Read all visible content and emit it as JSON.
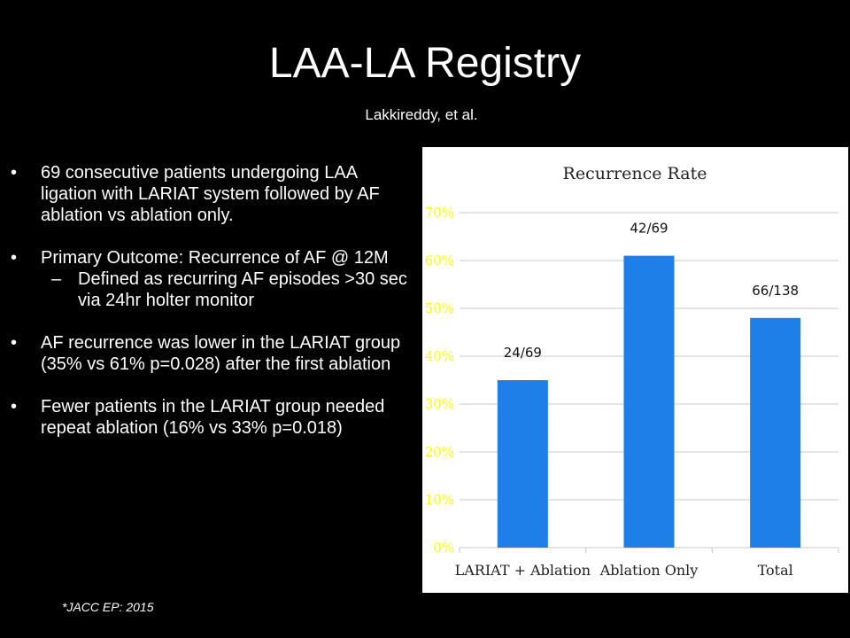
{
  "slide": {
    "title": "LAA-LA Registry",
    "subtitle": "Lakkireddy, et al.",
    "footnote": "*JACC EP:  2015",
    "bullet_mark": "•",
    "sub_bullet_mark": "–",
    "bullets": [
      {
        "text": "69 consecutive patients undergoing LAA ligation with LARIAT system followed by AF ablation vs ablation only."
      },
      {
        "text": "Primary Outcome: Recurrence of AF @ 12M",
        "sub": [
          {
            "text": "Defined as recurring AF episodes >30 sec via 24hr holter monitor"
          }
        ]
      },
      {
        "text": "AF recurrence was lower in the LARIAT group (35% vs 61% p=0.028) after the first ablation"
      },
      {
        "text": "Fewer patients in the LARIAT group needed repeat ablation (16% vs 33% p=0.018)"
      }
    ]
  },
  "colors": {
    "bar": "#1f7fe8",
    "y_tick_text": "#ffff00",
    "grid": "#c8c8c8",
    "panel": "#ffffff"
  },
  "chart_data": {
    "type": "bar",
    "title": "Recurrence Rate",
    "categories": [
      "LARIAT + Ablation",
      "Ablation Only",
      "Total"
    ],
    "values": [
      35,
      61,
      48
    ],
    "data_labels": [
      "24/69",
      "42/69",
      "66/138"
    ],
    "ylim": [
      0,
      70
    ],
    "yticks": [
      0,
      10,
      20,
      30,
      40,
      50,
      60,
      70
    ],
    "ytick_labels": [
      "0%",
      "10%",
      "20%",
      "30%",
      "40%",
      "50%",
      "60%",
      "70%"
    ],
    "grid": true,
    "legend": "none"
  }
}
